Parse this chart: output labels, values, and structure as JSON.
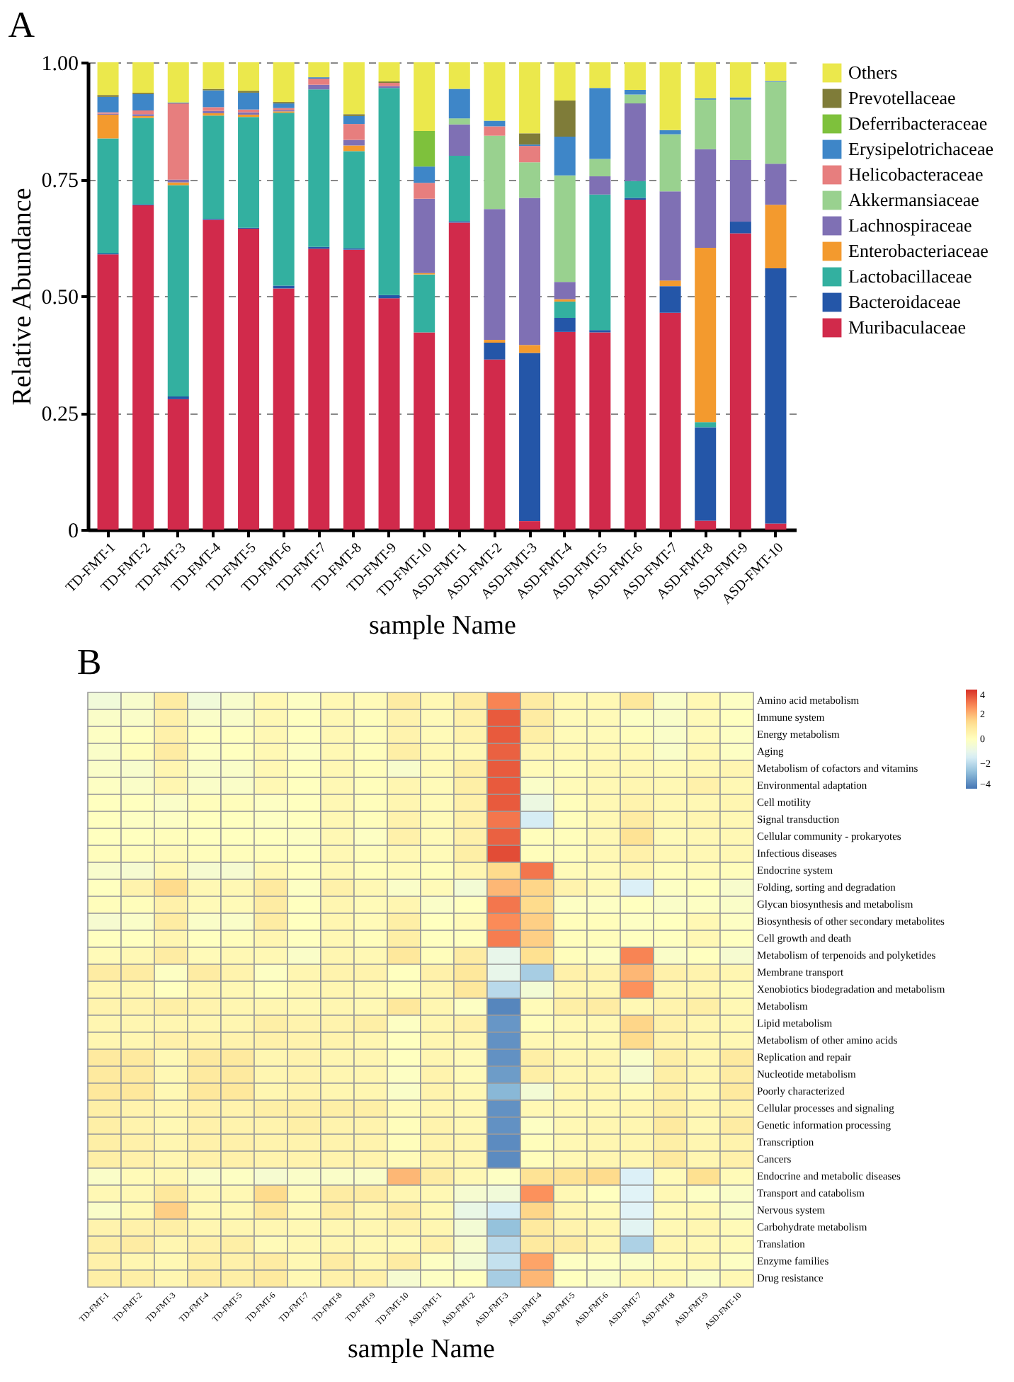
{
  "chart_data": [
    {
      "type": "bar",
      "stacked": true,
      "title": "A",
      "xlabel": "sample Name",
      "ylabel": "Relative Abundance",
      "legend": "right",
      "grid": "y",
      "ylim": [
        0,
        1
      ],
      "yticks": [
        {
          "value": 0,
          "label": "0"
        },
        {
          "value": 0.25,
          "label": "0.25"
        },
        {
          "value": 0.5,
          "label": "0.50"
        },
        {
          "value": 0.75,
          "label": "0.75"
        },
        {
          "value": 1,
          "label": "1.00"
        }
      ],
      "categories": [
        "TD-FMT-1",
        "TD-FMT-2",
        "TD-FMT-3",
        "TD-FMT-4",
        "TD-FMT-5",
        "TD-FMT-6",
        "TD-FMT-7",
        "TD-FMT-8",
        "TD-FMT-9",
        "TD-FMT-10",
        "ASD-FMT-1",
        "ASD-FMT-2",
        "ASD-FMT-3",
        "ASD-FMT-4",
        "ASD-FMT-5",
        "ASD-FMT-6",
        "ASD-FMT-7",
        "ASD-FMT-8",
        "ASD-FMT-9",
        "ASD-FMT-10"
      ],
      "series": [
        {
          "name": "Muribaculaceae",
          "color": "#d12a4b",
          "values": [
            0.589,
            0.694,
            0.279,
            0.663,
            0.644,
            0.516,
            0.601,
            0.599,
            0.495,
            0.422,
            0.657,
            0.364,
            0.018,
            0.423,
            0.422,
            0.706,
            0.464,
            0.019,
            0.634,
            0.013
          ]
        },
        {
          "name": "Bacteroidaceae",
          "color": "#2456a8",
          "values": [
            0.002,
            0.002,
            0.006,
            0.002,
            0.002,
            0.006,
            0.004,
            0.003,
            0.007,
            0,
            0.003,
            0.036,
            0.36,
            0.03,
            0.005,
            0.004,
            0.057,
            0.2,
            0.025,
            0.546
          ]
        },
        {
          "name": "Lactobacillaceae",
          "color": "#33b0a0",
          "values": [
            0.246,
            0.185,
            0.452,
            0.221,
            0.237,
            0.37,
            0.337,
            0.208,
            0.443,
            0.124,
            0.14,
            0,
            0,
            0.035,
            0.29,
            0.036,
            0,
            0.011,
            0,
            0
          ]
        },
        {
          "name": "Enterobacteriaceae",
          "color": "#f39a2e",
          "values": [
            0.051,
            0.004,
            0.006,
            0.005,
            0.005,
            0.003,
            0,
            0.012,
            0,
            0.003,
            0,
            0.006,
            0.017,
            0.005,
            0,
            0,
            0.012,
            0.373,
            0,
            0.136
          ]
        },
        {
          "name": "Lachnospiraceae",
          "color": "#7f70b4",
          "values": [
            0.002,
            0.004,
            0.006,
            0.005,
            0.005,
            0.003,
            0.01,
            0.012,
            0.004,
            0.159,
            0.067,
            0.28,
            0.315,
            0.037,
            0.039,
            0.166,
            0.191,
            0.211,
            0.132,
            0.088
          ]
        },
        {
          "name": "Akkermansiaceae",
          "color": "#99d18f",
          "values": [
            0,
            0,
            0,
            0,
            0,
            0,
            0,
            0,
            0,
            0,
            0.013,
            0.157,
            0.076,
            0.228,
            0.037,
            0.019,
            0.122,
            0.106,
            0.129,
            0.175
          ]
        },
        {
          "name": "Helicobacteraceae",
          "color": "#e77e7e",
          "values": [
            0.003,
            0.008,
            0.163,
            0.008,
            0.006,
            0.004,
            0.013,
            0.034,
            0.007,
            0.034,
            0,
            0.02,
            0.035,
            0,
            0,
            0,
            0,
            0,
            0,
            0
          ]
        },
        {
          "name": "Erysipelotrichaceae",
          "color": "#3e86c8",
          "values": [
            0.033,
            0.035,
            0.002,
            0.036,
            0.036,
            0.01,
            0.003,
            0.017,
            0,
            0.035,
            0.063,
            0.012,
            0.003,
            0.083,
            0.152,
            0.01,
            0.009,
            0.003,
            0.005,
            0.002
          ]
        },
        {
          "name": "Deferribacteraceae",
          "color": "#7ec13c",
          "values": [
            0,
            0,
            0,
            0,
            0,
            0,
            0,
            0,
            0,
            0.076,
            0,
            0,
            0,
            0,
            0,
            0,
            0,
            0,
            0,
            0
          ]
        },
        {
          "name": "Prevotellaceae",
          "color": "#7f7c39",
          "values": [
            0.004,
            0.003,
            0,
            0.003,
            0.004,
            0.003,
            0,
            0.004,
            0.003,
            0,
            0,
            0,
            0.024,
            0.077,
            0,
            0,
            0,
            0,
            0,
            0
          ]
        },
        {
          "name": "Others",
          "color": "#ebe84c",
          "values": [
            0.07,
            0.065,
            0.086,
            0.057,
            0.061,
            0.085,
            0.032,
            0.111,
            0.041,
            0.147,
            0.057,
            0.125,
            0.152,
            0.082,
            0.055,
            0.059,
            0.145,
            0.077,
            0.075,
            0.04
          ]
        }
      ]
    },
    {
      "type": "heatmap",
      "title": "B",
      "xlabel": "sample Name",
      "clim": [
        -4,
        4
      ],
      "cticks": [
        4,
        2,
        0,
        -2,
        -4
      ],
      "categories": [
        "TD-FMT-1",
        "TD-FMT-2",
        "TD-FMT-3",
        "TD-FMT-4",
        "TD-FMT-5",
        "TD-FMT-6",
        "TD-FMT-7",
        "TD-FMT-8",
        "TD-FMT-9",
        "TD-FMT-10",
        "ASD-FMT-1",
        "ASD-FMT-2",
        "ASD-FMT-3",
        "ASD-FMT-4",
        "ASD-FMT-5",
        "ASD-FMT-6",
        "ASD-FMT-7",
        "ASD-FMT-8",
        "ASD-FMT-9",
        "ASD-FMT-10"
      ],
      "y_categories": [
        "Amino acid metabolism",
        "Immune system",
        "Energy metabolism",
        "Aging",
        "Metabolism of cofactors and vitamins",
        "Environmental adaptation",
        "Cell motility",
        "Signal transduction",
        "Cellular community - prokaryotes",
        "Infectious diseases",
        "Endocrine system",
        "Folding, sorting and degradation",
        "Glycan biosynthesis and metabolism",
        "Biosynthesis of other secondary metabolites",
        "Cell growth and death",
        "Metabolism of terpenoids and polyketides",
        "Membrane transport",
        "Xenobiotics biodegradation and metabolism",
        "Metabolism",
        "Lipid metabolism",
        "Metabolism of other amino acids",
        "Replication and repair",
        "Nucleotide metabolism",
        "Poorly characterized",
        "Cellular processes and signaling",
        "Genetic information processing",
        "Transcription",
        "Cancers",
        "Endocrine and metabolic diseases",
        "Transport and catabolism",
        "Nervous system",
        "Carbohydrate metabolism",
        "Translation",
        "Enzyme families",
        "Drug resistance"
      ],
      "cells": [
        [
          -0.6,
          -0.3,
          0.8,
          -0.6,
          -0.3,
          0.3,
          -0.1,
          0.3,
          0.2,
          0.8,
          0.3,
          0.8,
          2.8,
          0.8,
          0.3,
          0.3,
          1.0,
          -0.2,
          0.3,
          -0.1
        ],
        [
          -0.2,
          -0.2,
          0.6,
          -0.2,
          -0.2,
          0.3,
          0,
          0.3,
          0.1,
          0.5,
          0.2,
          0.6,
          3.4,
          0.8,
          0.2,
          0.2,
          -0.1,
          -0.2,
          0.2,
          0
        ],
        [
          -0.1,
          0,
          0.6,
          0,
          0,
          0.3,
          0,
          0.3,
          0.1,
          0.5,
          0.2,
          0.5,
          3.4,
          0.7,
          0.2,
          0.2,
          0.1,
          -0.2,
          0.2,
          -0.1
        ],
        [
          -0.2,
          0.1,
          0.8,
          -0.1,
          0,
          0.3,
          -0.1,
          0.3,
          0.1,
          0.7,
          0.3,
          0.3,
          3.3,
          0.4,
          0.3,
          0.3,
          0.3,
          -0.2,
          0.3,
          -0.1
        ],
        [
          -0.2,
          -0.3,
          0.4,
          -0.2,
          -0.2,
          0.3,
          0,
          0.3,
          0.1,
          -0.3,
          0.2,
          0.7,
          3.4,
          0.2,
          0.1,
          0.3,
          0.3,
          0.2,
          0.3,
          0.4
        ],
        [
          -0.1,
          -0.2,
          0.4,
          -0.2,
          -0.2,
          0.3,
          0,
          0.3,
          0.1,
          0.4,
          0.2,
          0.7,
          3.4,
          -0.2,
          0.2,
          0.3,
          0.4,
          0.3,
          0.6,
          0.3
        ],
        [
          0,
          0,
          -0.2,
          0.1,
          0.1,
          -0.1,
          0,
          0.3,
          0.1,
          0.4,
          0.2,
          0.6,
          3.4,
          -0.8,
          0.1,
          0.3,
          0.5,
          0.3,
          0.3,
          0.4
        ],
        [
          0,
          -0.1,
          -0.1,
          0,
          0,
          -0.1,
          0,
          0.3,
          0.1,
          0.5,
          0.2,
          0.6,
          3.0,
          -1.5,
          0.1,
          0.3,
          0.8,
          0.3,
          0.4,
          0.3
        ],
        [
          0,
          0,
          0.1,
          0,
          0,
          0,
          -0.1,
          0.3,
          -0.1,
          0.6,
          0.2,
          0.6,
          3.3,
          0.1,
          0.1,
          0.3,
          1.2,
          0.2,
          0.3,
          0.3
        ],
        [
          0.1,
          0.1,
          0.2,
          0.1,
          0.1,
          0.1,
          0,
          0.3,
          0.1,
          0.3,
          0.2,
          0.7,
          3.6,
          0.1,
          0.1,
          0.3,
          0.6,
          0.3,
          0.3,
          0.3
        ],
        [
          -0.3,
          -0.4,
          0.3,
          -0.4,
          -0.4,
          0.3,
          0,
          0.3,
          0.1,
          0.2,
          0.1,
          0.4,
          1.4,
          3.0,
          0.2,
          0.2,
          0.4,
          0.1,
          0.2,
          0.1
        ],
        [
          0,
          0.5,
          1.4,
          0.3,
          0.3,
          0.9,
          -0.1,
          0.6,
          0.3,
          -0.2,
          0.2,
          -0.5,
          2.0,
          1.5,
          0.5,
          0.2,
          -1.4,
          -0.1,
          0,
          -0.3
        ],
        [
          0.1,
          0.1,
          0.6,
          0.2,
          0.2,
          0.8,
          0,
          0.4,
          0.2,
          0.4,
          -0.2,
          0,
          3.0,
          1.4,
          -0.1,
          -0.1,
          0,
          -0.2,
          -0.1,
          -0.2
        ],
        [
          -0.4,
          -0.2,
          0.8,
          -0.2,
          -0.2,
          0.8,
          0,
          0.4,
          0.2,
          0.7,
          0,
          0.2,
          2.7,
          1.6,
          0.1,
          0.1,
          -0.1,
          0,
          0.3,
          -0.1
        ],
        [
          0,
          0,
          0.4,
          0,
          0.1,
          0.4,
          0,
          0.3,
          0.1,
          0.7,
          0,
          0,
          2.9,
          1.6,
          0.1,
          0.1,
          0,
          0,
          0.3,
          0
        ],
        [
          0.2,
          0.3,
          0.8,
          0.2,
          0.3,
          0.3,
          -0.2,
          0.4,
          0.3,
          1.0,
          0.1,
          0.8,
          -1.0,
          1.3,
          0.1,
          -0.1,
          2.8,
          -0.2,
          0,
          -0.4
        ],
        [
          0.8,
          0.8,
          -0.1,
          0.8,
          0.5,
          -0.1,
          0.4,
          0.5,
          0.5,
          0,
          0.6,
          1.0,
          -1.0,
          -2.3,
          0.6,
          0.5,
          2.0,
          0.6,
          0.5,
          0.4
        ],
        [
          0.4,
          0.4,
          0,
          0.4,
          0.3,
          0.1,
          0.3,
          0.4,
          0.3,
          0.1,
          0.4,
          1.0,
          -2.0,
          -0.5,
          0.4,
          0.4,
          2.6,
          0.4,
          0.4,
          0.2
        ],
        [
          0.5,
          0.5,
          0.7,
          0.5,
          0.4,
          0.4,
          0.3,
          0.4,
          0.3,
          1.0,
          0.4,
          -0.1,
          -3.7,
          0.2,
          0.7,
          0.8,
          0.3,
          0.5,
          0.7,
          0.3
        ],
        [
          0.4,
          0.4,
          0.4,
          0.4,
          0.4,
          0.7,
          0.5,
          0.5,
          0.7,
          -0.1,
          0.4,
          0.6,
          -3.4,
          0.1,
          0.3,
          0.3,
          1.5,
          0.6,
          0.4,
          0.3
        ],
        [
          0.4,
          0.4,
          0.6,
          0.5,
          0.5,
          0.6,
          0.5,
          0.5,
          0.4,
          0,
          0.4,
          0.4,
          -3.5,
          0.3,
          0.3,
          0.3,
          1.4,
          0.5,
          0.4,
          0.3
        ],
        [
          0.9,
          0.9,
          0.3,
          0.9,
          0.9,
          0.4,
          0.5,
          0.4,
          0.4,
          0,
          0.4,
          0.2,
          -3.5,
          0.7,
          0.4,
          0.4,
          -0.2,
          0.7,
          0.4,
          0.9
        ],
        [
          0.9,
          0.9,
          0.3,
          0.9,
          0.9,
          0.4,
          0.5,
          0.4,
          0.4,
          -0.1,
          0.5,
          0.2,
          -3.3,
          0.7,
          0.4,
          0.4,
          -0.4,
          0.7,
          0.4,
          0.8
        ],
        [
          1.0,
          1.0,
          0.3,
          1.0,
          1.0,
          0.4,
          0.5,
          0.4,
          0.4,
          -0.2,
          0.5,
          0.3,
          -2.8,
          -0.5,
          0.4,
          0.4,
          0.2,
          0.7,
          0.3,
          0.9
        ],
        [
          0.7,
          0.5,
          0.4,
          0.6,
          0.5,
          0.7,
          0.7,
          0.7,
          0.7,
          0.2,
          0.4,
          0.3,
          -3.5,
          0.3,
          0.3,
          0.3,
          0.4,
          0.7,
          0.4,
          0.5
        ],
        [
          0.7,
          0.5,
          0.3,
          0.6,
          0.5,
          0.5,
          0.7,
          0.5,
          0.5,
          0.1,
          0.5,
          0.3,
          -3.5,
          -0.1,
          0.3,
          0.4,
          0.4,
          0.9,
          0.3,
          0.8
        ],
        [
          0.7,
          0.6,
          0.4,
          0.6,
          0.6,
          0.5,
          0.5,
          0.5,
          0.5,
          0.1,
          0.5,
          0.4,
          -3.6,
          0.1,
          0.3,
          0.4,
          0.4,
          0.7,
          0.4,
          0.5
        ],
        [
          0.7,
          0.6,
          0.4,
          0.6,
          0.6,
          0.5,
          0.5,
          0.5,
          0.5,
          0.2,
          0.5,
          0.4,
          -3.6,
          0.1,
          0.3,
          0.4,
          0.4,
          0.9,
          0.4,
          0.6
        ],
        [
          -0.2,
          0.2,
          0.3,
          -0.2,
          -0.1,
          -0.4,
          -0.2,
          -0.2,
          -0.2,
          2.0,
          0.8,
          0.3,
          -0.1,
          1.2,
          1.2,
          1.4,
          -1.4,
          0.2,
          1.3,
          0.2
        ],
        [
          0.3,
          0.3,
          1.0,
          0.3,
          0.3,
          1.4,
          0.2,
          0.8,
          0.8,
          0.4,
          0.3,
          -0.4,
          -0.6,
          2.6,
          0.3,
          0,
          -1.3,
          0.3,
          -0.1,
          -0.2
        ],
        [
          -0.2,
          0.3,
          1.6,
          0.3,
          0.3,
          1.0,
          0.2,
          0.8,
          0.4,
          0.8,
          0.3,
          -0.9,
          -1.5,
          1.5,
          0.4,
          0.2,
          -1.3,
          0.2,
          0.3,
          -0.2
        ],
        [
          0.5,
          0.6,
          0.7,
          0.4,
          0.4,
          0.4,
          0.3,
          0.4,
          0.4,
          0.5,
          0.4,
          -0.5,
          -2.6,
          0.9,
          0.5,
          0.4,
          -1.2,
          0.3,
          0.4,
          0.2
        ],
        [
          0.7,
          0.8,
          0.4,
          0.6,
          0.7,
          0.2,
          0.3,
          0.4,
          0.3,
          0.2,
          0.6,
          -0.3,
          -2.0,
          0.9,
          0.8,
          0.4,
          -2.2,
          0.4,
          0.3,
          0.2
        ],
        [
          0.6,
          0.4,
          0.3,
          0.7,
          0.6,
          0.8,
          0.3,
          0.8,
          0.4,
          0.8,
          -0.1,
          -0.5,
          -1.8,
          2.3,
          -0.1,
          -0.1,
          -0.2,
          0.2,
          0.3,
          -0.1
        ],
        [
          0.7,
          0.7,
          0.4,
          0.8,
          0.7,
          0.9,
          0.3,
          0.6,
          0.6,
          -0.4,
          -0.1,
          0,
          -2.3,
          2.0,
          0,
          -0.2,
          0.3,
          0.3,
          -0.2,
          0.3
        ]
      ]
    }
  ]
}
